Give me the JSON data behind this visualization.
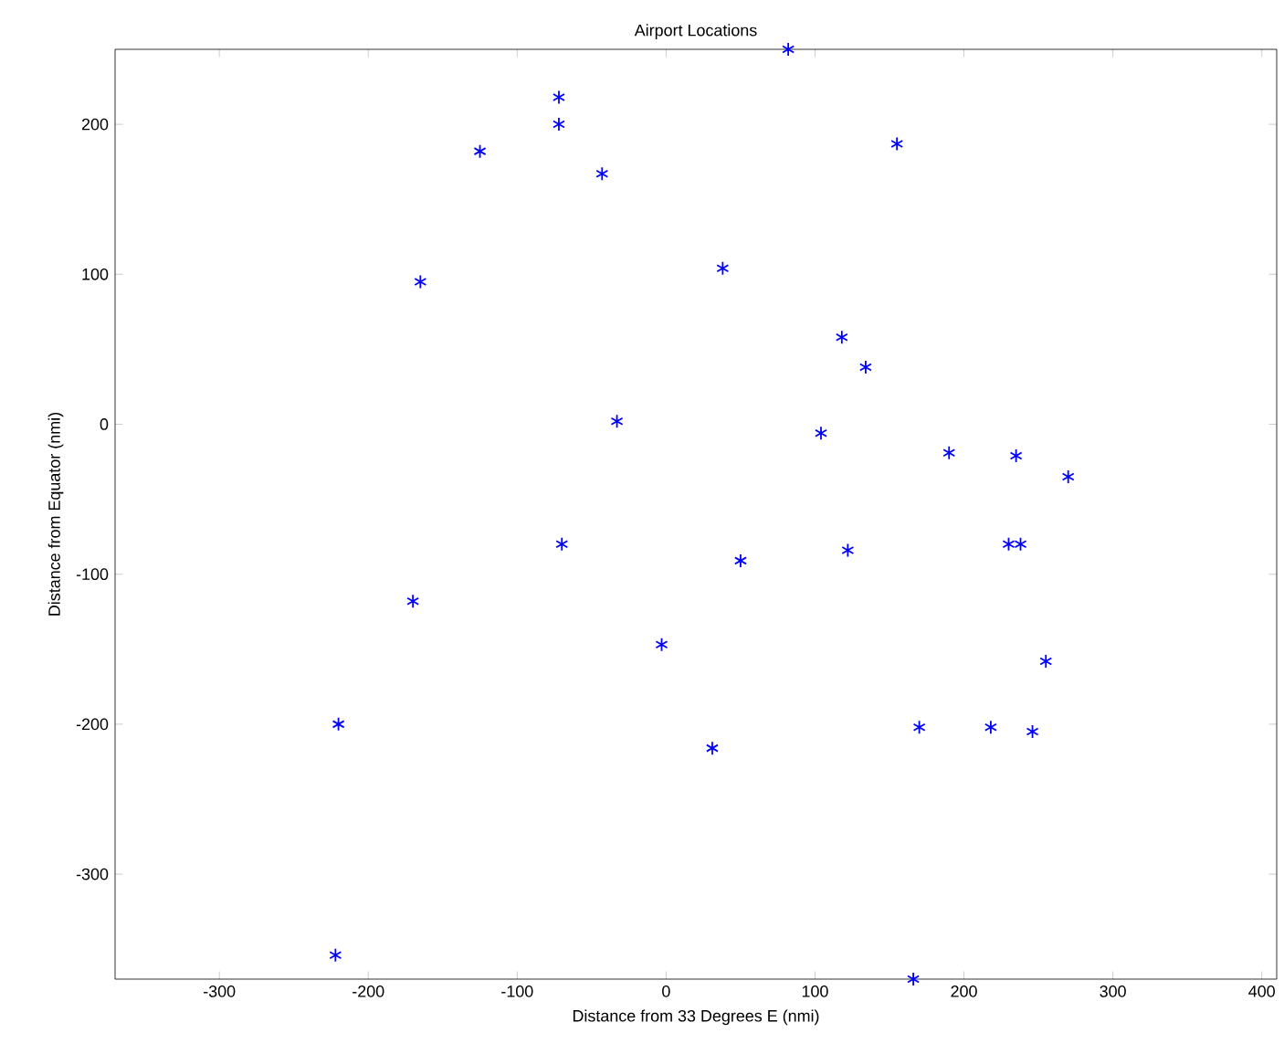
{
  "chart_data": {
    "type": "scatter",
    "title": "Airport Locations",
    "xlabel": "Distance from 33 Degrees E (nmi)",
    "ylabel": "Distance from Equator (nmi)",
    "x": [
      -72,
      -72,
      -125,
      -43,
      -165,
      82,
      155,
      38,
      118,
      134,
      -33,
      104,
      190,
      235,
      270,
      -70,
      230,
      238,
      122,
      50,
      -170,
      -3,
      255,
      -220,
      170,
      218,
      246,
      31,
      -222,
      166
    ],
    "values": [
      218,
      200,
      182,
      167,
      95,
      250,
      187,
      104,
      58,
      38,
      2,
      -6,
      -19,
      -21,
      -35,
      -80,
      -80,
      -80,
      -84,
      -91,
      -118,
      -147,
      -158,
      -200,
      -202,
      -202,
      -205,
      -216,
      -354,
      -370
    ],
    "color": "#0000ff",
    "marker": "cross",
    "grid": false,
    "xlim": [
      -370,
      410
    ],
    "ylim": [
      -370,
      250
    ],
    "xticks": [
      -300,
      -200,
      -100,
      0,
      100,
      200,
      300,
      400
    ],
    "yticks": [
      -300,
      -200,
      -100,
      0,
      100,
      200
    ]
  }
}
